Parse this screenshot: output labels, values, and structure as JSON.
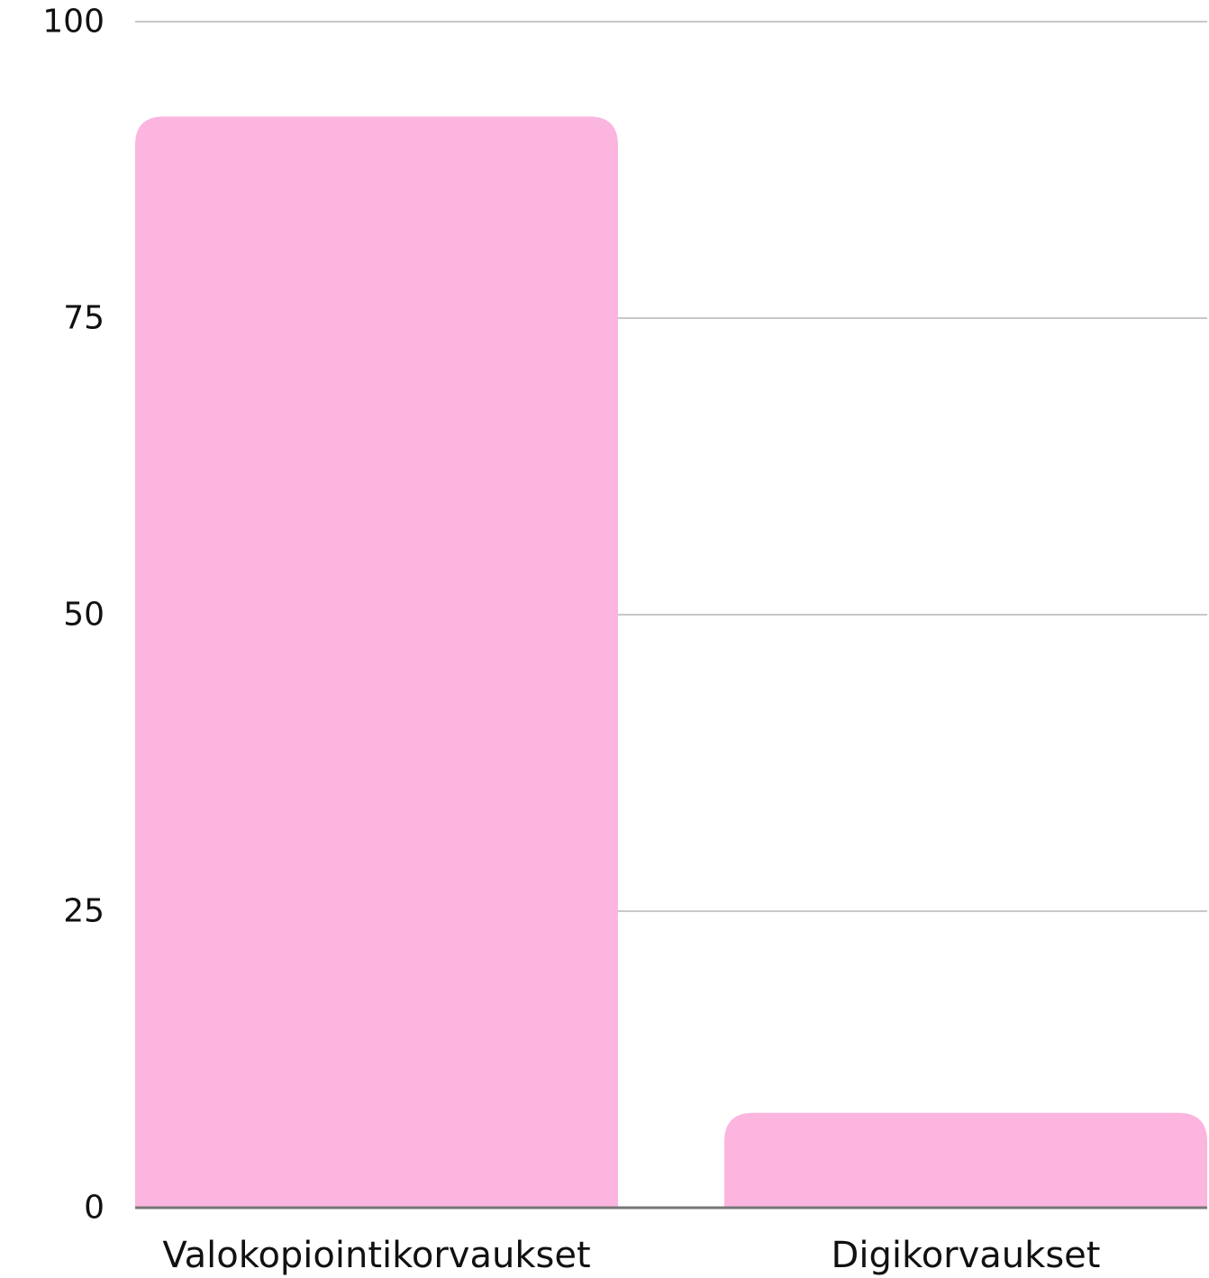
{
  "chart_data": {
    "type": "bar",
    "categories": [
      "Valokopiointikorvaukset",
      "Digikorvaukset"
    ],
    "values": [
      92,
      8
    ],
    "ylim": [
      0,
      100
    ],
    "yticks": [
      0,
      25,
      50,
      75,
      100
    ],
    "ytick_labels": [
      "0",
      "25",
      "50",
      "75",
      "100"
    ],
    "grid": true,
    "legend": "none",
    "colors": {
      "bar": "#fcb5df",
      "grid": "#c8c8c8",
      "baseline": "#777777",
      "text": "#111111"
    }
  }
}
